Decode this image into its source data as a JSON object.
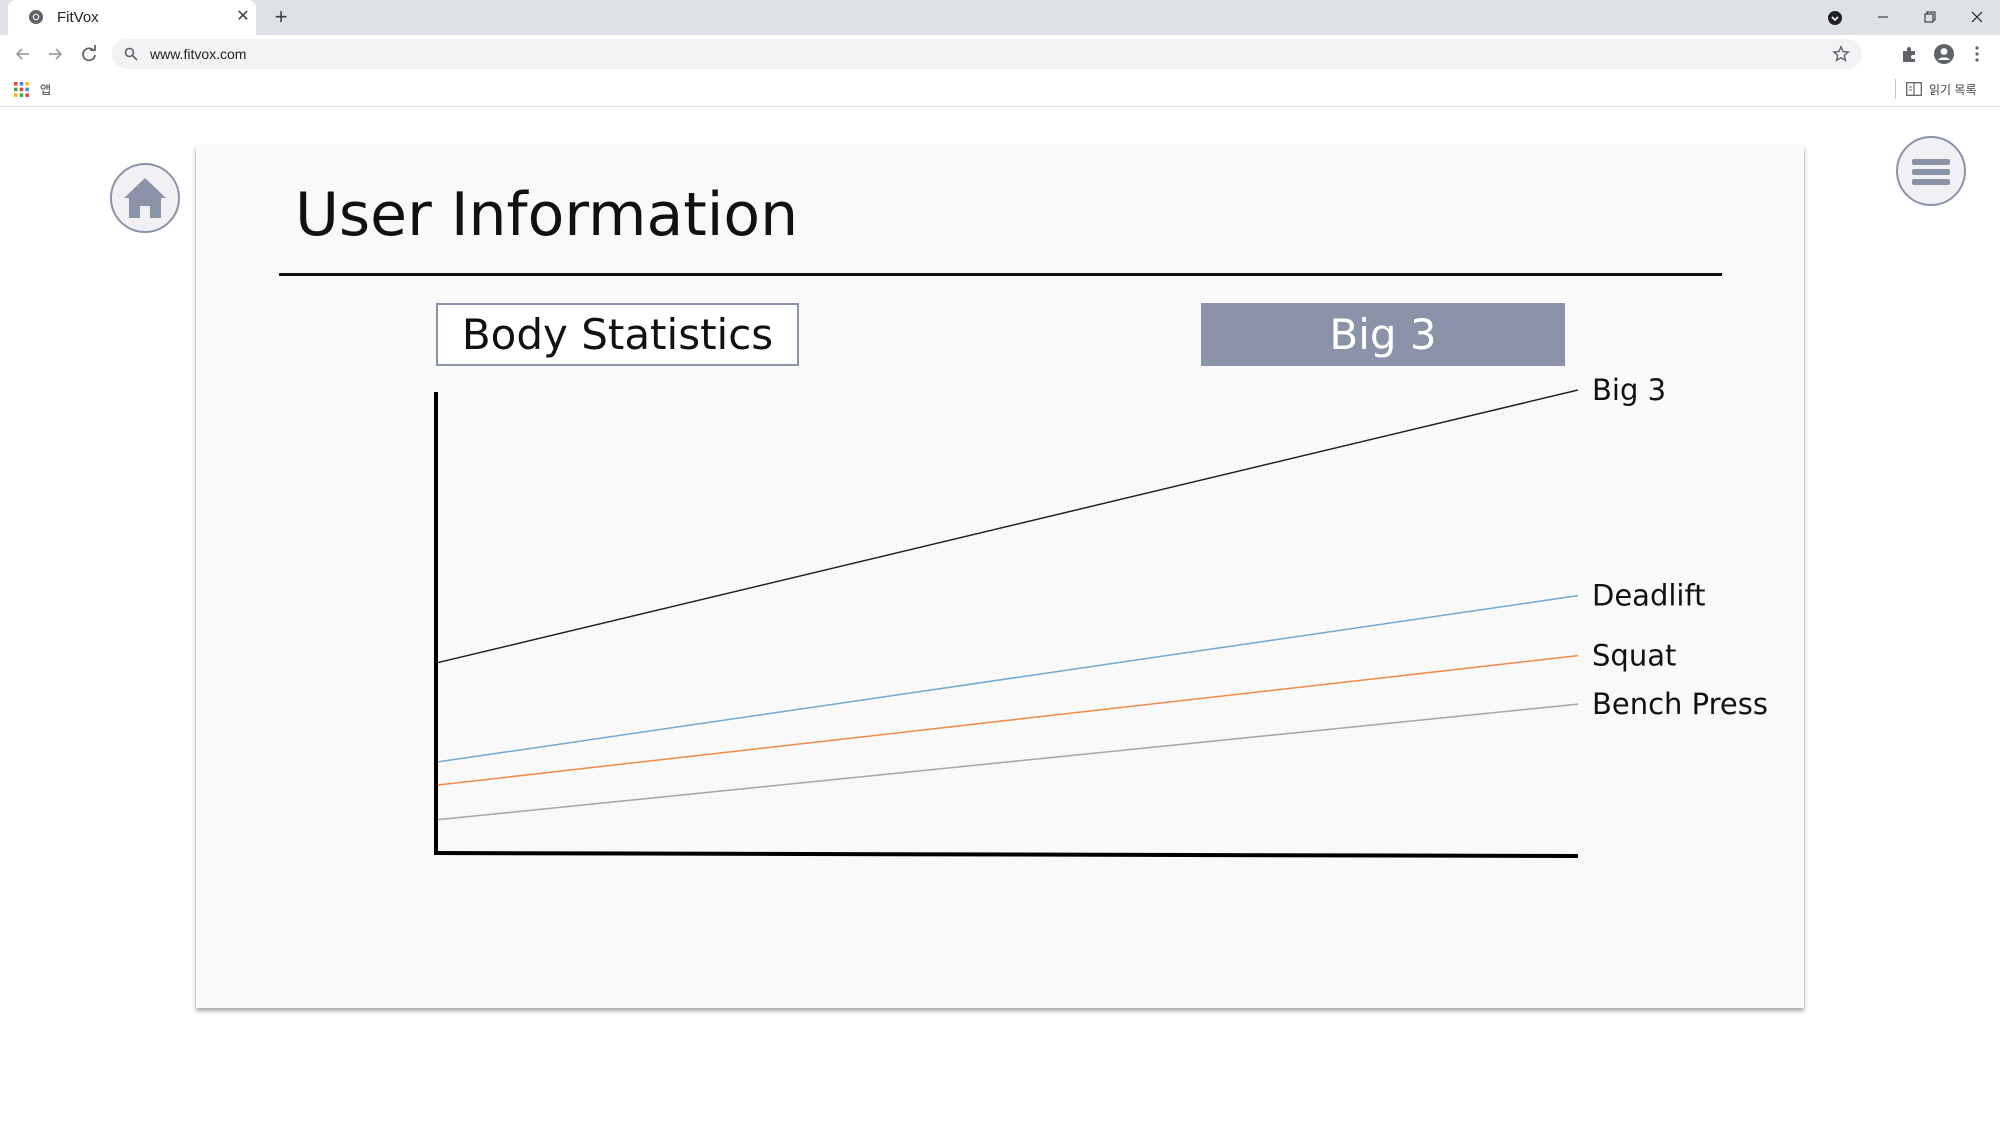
{
  "browser": {
    "tab_title": "FitVox",
    "tab_close": "✕",
    "new_tab": "+",
    "url": "www.fitvox.com",
    "bookmarks": {
      "apps_label": "앱",
      "reading_list_label": "읽기 목록"
    }
  },
  "page": {
    "title": "User Information",
    "tabs": [
      {
        "label": "Body Statistics",
        "selected": false
      },
      {
        "label": "Big 3",
        "selected": true
      }
    ],
    "home_icon": "home-icon",
    "menu_icon": "hamburger-menu-icon"
  },
  "colors": {
    "accent": "#8b93a8",
    "big3": "#222222",
    "deadlift": "#6fa8d0",
    "squat": "#ef8a47",
    "bench_press": "#a6a6a6"
  },
  "chart_data": {
    "type": "line",
    "title": "",
    "xlabel": "",
    "ylabel": "",
    "x": [
      0,
      1
    ],
    "ylim": [
      0,
      100
    ],
    "grid": false,
    "legend": "labels at line ends",
    "series": [
      {
        "name": "Big 3",
        "values": [
          41,
          100
        ],
        "color": "#222222"
      },
      {
        "name": "Deadlift",
        "values": [
          19.5,
          55.5
        ],
        "color": "#6fa8d0"
      },
      {
        "name": "Squat",
        "values": [
          14.5,
          42.5
        ],
        "color": "#ef8a47"
      },
      {
        "name": "Bench Press",
        "values": [
          7,
          32
        ],
        "color": "#a6a6a6"
      }
    ]
  }
}
